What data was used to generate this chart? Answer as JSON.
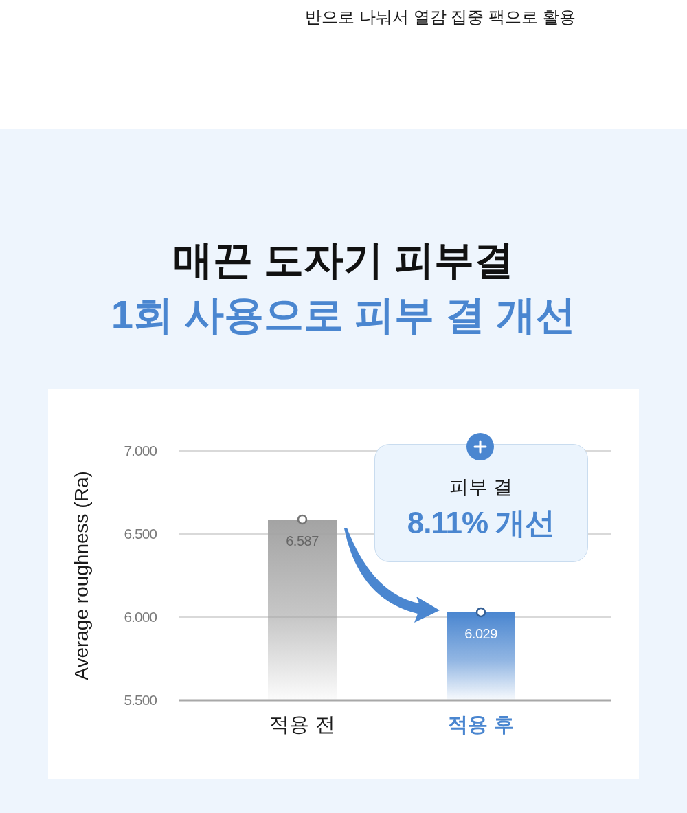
{
  "chart_data": {
    "type": "bar",
    "title": "매끈 도자기 피부결",
    "subtitle": "1회 사용으로 피부 결 개선",
    "ylabel": "Average roughness (Ra)",
    "categories": [
      "적용 전",
      "적용 후"
    ],
    "series": [
      {
        "type": "bar",
        "values": [
          6.587,
          6.029
        ],
        "colors": [
          "#a3a3a3",
          "#4a86d0"
        ],
        "value_labels": [
          "6.587",
          "6.029"
        ]
      },
      {
        "type": "scatter",
        "x": [
          "적용 전",
          "적용 후"
        ],
        "values": [
          6.587,
          6.029
        ],
        "color": "#ffffff"
      }
    ],
    "ylim": [
      5.5,
      7
    ],
    "yticks": [
      {
        "value": 5.5,
        "label": "5.500"
      },
      {
        "value": 6,
        "label": "6.000"
      },
      {
        "value": 6.5,
        "label": "6.500"
      },
      {
        "value": 7,
        "label": "7.000"
      }
    ],
    "grid": "y",
    "marker": "circle",
    "annotations": [
      "반으로 나눠서 열감 집중 팩으로 활용",
      "피부 결",
      "8.11% 개선"
    ]
  }
}
